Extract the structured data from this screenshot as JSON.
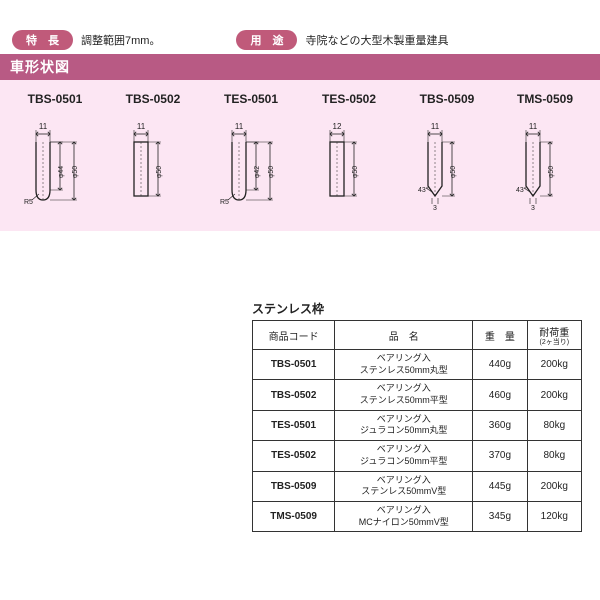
{
  "header": {
    "feature_pill": "特　長",
    "feature_text": "調整範囲7mm。",
    "use_pill": "用　途",
    "use_text": "寺院などの大型木製重量建具",
    "section_title": "車形状図"
  },
  "diagrams": [
    {
      "label": "TBS-0501",
      "type": "round",
      "w": "11",
      "d1": "φ44",
      "d2": "φ50",
      "r": "R5"
    },
    {
      "label": "TBS-0502",
      "type": "flat",
      "w": "11",
      "d2": "φ50"
    },
    {
      "label": "TES-0501",
      "type": "round",
      "w": "11",
      "d1": "φ42",
      "d2": "φ50",
      "r": "R5"
    },
    {
      "label": "TES-0502",
      "type": "flat",
      "w": "12",
      "d2": "φ50"
    },
    {
      "label": "TBS-0509",
      "type": "v",
      "w": "11",
      "d2": "φ50",
      "ang": "43°",
      "b": "3"
    },
    {
      "label": "TMS-0509",
      "type": "v",
      "w": "11",
      "d2": "φ50",
      "ang": "43°",
      "b": "3"
    }
  ],
  "table": {
    "title": "ステンレス枠",
    "columns": [
      "商品コード",
      "品　名",
      "重　量",
      "耐荷重"
    ],
    "col_sub": [
      "",
      "",
      "",
      "(2ヶ当り)"
    ],
    "rows": [
      {
        "code": "TBS-0501",
        "name_l1": "ベアリング入",
        "name_l2": "ステンレス50mm丸型",
        "weight": "440g",
        "load": "200kg"
      },
      {
        "code": "TBS-0502",
        "name_l1": "ベアリング入",
        "name_l2": "ステンレス50mm平型",
        "weight": "460g",
        "load": "200kg"
      },
      {
        "code": "TES-0501",
        "name_l1": "ベアリング入",
        "name_l2": "ジュラコン50mm丸型",
        "weight": "360g",
        "load": "80kg"
      },
      {
        "code": "TES-0502",
        "name_l1": "ベアリング入",
        "name_l2": "ジュラコン50mm平型",
        "weight": "370g",
        "load": "80kg"
      },
      {
        "code": "TBS-0509",
        "name_l1": "ベアリング入",
        "name_l2": "ステンレス50mmV型",
        "weight": "445g",
        "load": "200kg"
      },
      {
        "code": "TMS-0509",
        "name_l1": "ベアリング入",
        "name_l2": "MCナイロン50mmV型",
        "weight": "345g",
        "load": "120kg"
      }
    ]
  },
  "style": {
    "pill_bg": "#c05a7a",
    "band_bg": "#fce6f3",
    "title_bg": "#b85a84",
    "stroke": "#222222"
  }
}
